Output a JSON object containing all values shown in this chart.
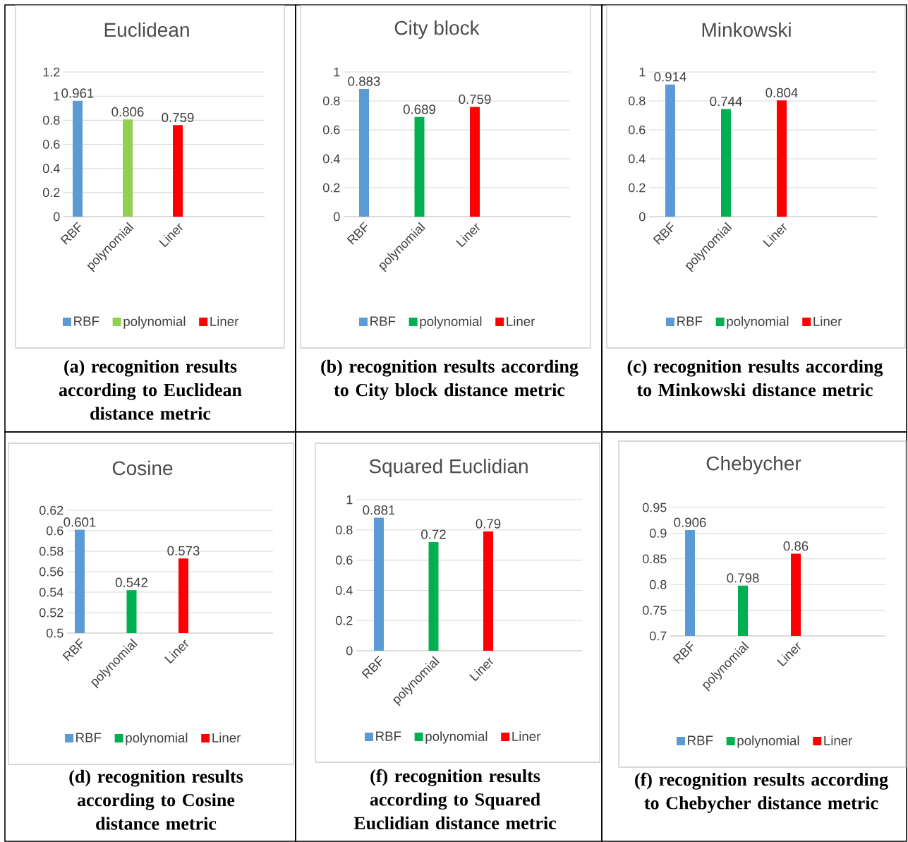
{
  "chart_data": [
    {
      "type": "bar",
      "title": "Euclidean",
      "categories": [
        "RBF",
        "polynomial",
        "Liner"
      ],
      "series": [
        {
          "name": "RBF",
          "color": "#5b9bd5",
          "values": [
            0.961,
            null,
            null
          ]
        },
        {
          "name": "polynomial",
          "color": "#92d050",
          "values": [
            null,
            0.806,
            null
          ]
        },
        {
          "name": "Liner",
          "color": "#ff0000",
          "values": [
            null,
            null,
            0.759
          ]
        }
      ],
      "ylim": [
        0,
        1.2
      ],
      "yticks": [
        0,
        0.2,
        0.4,
        0.6,
        0.8,
        1,
        1.2
      ],
      "grid": "y",
      "legend": "bottom",
      "data_labels": true,
      "annotations": [
        "(a) recognition results according to Euclidean distance metric"
      ]
    },
    {
      "type": "bar",
      "title": "City block",
      "categories": [
        "RBF",
        "polynomial",
        "Liner"
      ],
      "series": [
        {
          "name": "RBF",
          "color": "#5b9bd5",
          "values": [
            0.883,
            null,
            null
          ]
        },
        {
          "name": "polynomial",
          "color": "#00b050",
          "values": [
            null,
            0.689,
            null
          ]
        },
        {
          "name": "Liner",
          "color": "#ff0000",
          "values": [
            null,
            null,
            0.759
          ]
        }
      ],
      "ylim": [
        0,
        1
      ],
      "yticks": [
        0,
        0.2,
        0.4,
        0.6,
        0.8,
        1
      ],
      "grid": "y",
      "legend": "bottom",
      "data_labels": true,
      "annotations": [
        "(b) recognition results according to City block distance metric"
      ]
    },
    {
      "type": "bar",
      "title": "Minkowski",
      "categories": [
        "RBF",
        "polynomial",
        "Liner"
      ],
      "series": [
        {
          "name": "RBF",
          "color": "#5b9bd5",
          "values": [
            0.914,
            null,
            null
          ]
        },
        {
          "name": "polynomial",
          "color": "#00b050",
          "values": [
            null,
            0.744,
            null
          ]
        },
        {
          "name": "Liner",
          "color": "#ff0000",
          "values": [
            null,
            null,
            0.804
          ]
        }
      ],
      "ylim": [
        0,
        1
      ],
      "yticks": [
        0,
        0.2,
        0.4,
        0.6,
        0.8,
        1
      ],
      "grid": "y",
      "legend": "bottom",
      "data_labels": true,
      "annotations": [
        "(c) recognition results according to Minkowski distance metric"
      ]
    },
    {
      "type": "bar",
      "title": "Cosine",
      "categories": [
        "RBF",
        "polynomial",
        "Liner"
      ],
      "series": [
        {
          "name": "RBF",
          "color": "#5b9bd5",
          "values": [
            0.601,
            null,
            null
          ]
        },
        {
          "name": "polynomial",
          "color": "#00b050",
          "values": [
            null,
            0.542,
            null
          ]
        },
        {
          "name": "Liner",
          "color": "#ff0000",
          "values": [
            null,
            null,
            0.573
          ]
        }
      ],
      "ylim": [
        0.5,
        0.62
      ],
      "yticks": [
        0.5,
        0.52,
        0.54,
        0.56,
        0.58,
        0.6,
        0.62
      ],
      "grid": "y",
      "legend": "bottom",
      "data_labels": true,
      "annotations": [
        "(d) recognition results according to Cosine distance metric"
      ]
    },
    {
      "type": "bar",
      "title": "Squared Euclidian",
      "categories": [
        "RBF",
        "polynomial",
        "Liner"
      ],
      "series": [
        {
          "name": "RBF",
          "color": "#5b9bd5",
          "values": [
            0.881,
            null,
            null
          ]
        },
        {
          "name": "polynomial",
          "color": "#00b050",
          "values": [
            null,
            0.72,
            null
          ]
        },
        {
          "name": "Liner",
          "color": "#ff0000",
          "values": [
            null,
            null,
            0.79
          ]
        }
      ],
      "ylim": [
        0,
        1
      ],
      "yticks": [
        0,
        0.2,
        0.4,
        0.6,
        0.8,
        1
      ],
      "grid": "y",
      "legend": "bottom",
      "data_labels": true,
      "annotations": [
        "(f) recognition results according to Squared Euclidian distance metric"
      ]
    },
    {
      "type": "bar",
      "title": "Chebycher",
      "categories": [
        "RBF",
        "polynomial",
        "Liner"
      ],
      "series": [
        {
          "name": "RBF",
          "color": "#5b9bd5",
          "values": [
            0.906,
            null,
            null
          ]
        },
        {
          "name": "polynomial",
          "color": "#00b050",
          "values": [
            null,
            0.798,
            null
          ]
        },
        {
          "name": "Liner",
          "color": "#ff0000",
          "values": [
            null,
            null,
            0.86
          ]
        }
      ],
      "ylim": [
        0.7,
        0.95
      ],
      "yticks": [
        0.7,
        0.75,
        0.8,
        0.85,
        0.9,
        0.95
      ],
      "grid": "y",
      "legend": "bottom",
      "data_labels": true,
      "annotations": [
        "(f) recognition results according to Chebycher distance metric"
      ]
    }
  ]
}
